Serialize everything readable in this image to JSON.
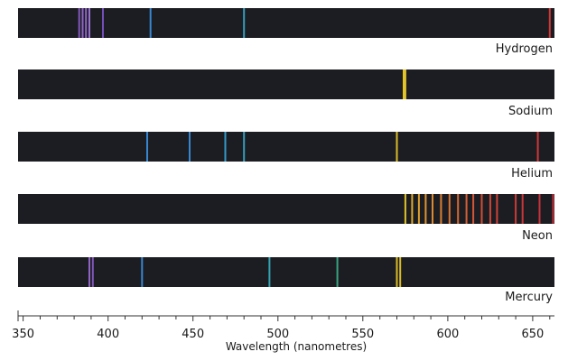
{
  "chart_data": {
    "type": "spectral-lines",
    "xlabel": "Wavelength (nanometres)",
    "xlim": [
      347,
      663
    ],
    "ticks": [
      350,
      400,
      450,
      500,
      550,
      600,
      650
    ],
    "minor_step": 10,
    "strip_color": "#1c1d22",
    "spectra": [
      {
        "name": "Hydrogen",
        "lines": [
          {
            "wl": 383,
            "color": "#8a5cc8"
          },
          {
            "wl": 385,
            "color": "#9a6ad6"
          },
          {
            "wl": 387,
            "color": "#9a6ad6"
          },
          {
            "wl": 389,
            "color": "#a57ae0"
          },
          {
            "wl": 397,
            "color": "#7a55c4"
          },
          {
            "wl": 425,
            "color": "#3a8fe0"
          },
          {
            "wl": 480,
            "color": "#36a9c8"
          },
          {
            "wl": 660,
            "color": "#e0393a"
          }
        ]
      },
      {
        "name": "Sodium",
        "lines": [
          {
            "wl": 574,
            "color": "#f2d22a"
          },
          {
            "wl": 575,
            "color": "#f2d22a"
          }
        ]
      },
      {
        "name": "Helium",
        "lines": [
          {
            "wl": 423,
            "color": "#3a8fe0"
          },
          {
            "wl": 448,
            "color": "#3a8fe0"
          },
          {
            "wl": 469,
            "color": "#36a3d8"
          },
          {
            "wl": 480,
            "color": "#36a9c8"
          },
          {
            "wl": 570,
            "color": "#e8c928"
          },
          {
            "wl": 653,
            "color": "#e0393a"
          }
        ]
      },
      {
        "name": "Neon",
        "lines": [
          {
            "wl": 575,
            "color": "#f0d02a"
          },
          {
            "wl": 579,
            "color": "#f0b82c"
          },
          {
            "wl": 583,
            "color": "#f0aa30"
          },
          {
            "wl": 587,
            "color": "#ee9e32"
          },
          {
            "wl": 591,
            "color": "#ec9434"
          },
          {
            "wl": 596,
            "color": "#ea8836"
          },
          {
            "wl": 601,
            "color": "#e87c36"
          },
          {
            "wl": 606,
            "color": "#e67038"
          },
          {
            "wl": 611,
            "color": "#e4663a"
          },
          {
            "wl": 615,
            "color": "#e25c3a"
          },
          {
            "wl": 620,
            "color": "#e0523a"
          },
          {
            "wl": 625,
            "color": "#de4a3c"
          },
          {
            "wl": 629,
            "color": "#dc443c"
          },
          {
            "wl": 640,
            "color": "#da3e3c"
          },
          {
            "wl": 644,
            "color": "#d83a3c"
          },
          {
            "wl": 654,
            "color": "#d6363c"
          },
          {
            "wl": 662,
            "color": "#d4323c"
          }
        ]
      },
      {
        "name": "Mercury",
        "lines": [
          {
            "wl": 389,
            "color": "#9a6ad6"
          },
          {
            "wl": 391,
            "color": "#8a5cc8"
          },
          {
            "wl": 420,
            "color": "#3a8fe0"
          },
          {
            "wl": 495,
            "color": "#36b0c0"
          },
          {
            "wl": 535,
            "color": "#3cb088"
          },
          {
            "wl": 570,
            "color": "#e8c928"
          },
          {
            "wl": 572,
            "color": "#e8c928"
          }
        ]
      }
    ]
  }
}
